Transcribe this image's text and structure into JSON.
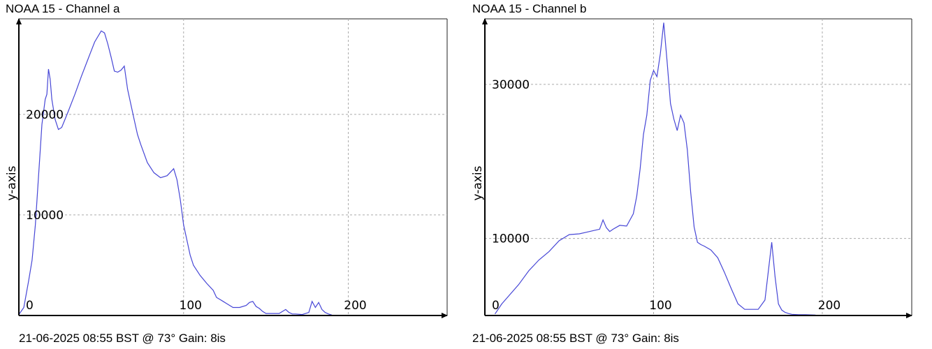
{
  "charts": [
    {
      "title": "NOAA 15 - Channel a",
      "footer": "21-06-2025 08:55 BST @ 73° Gain: 8is",
      "ylabel": "y-axis",
      "line_color": "#4646d6",
      "chart_data": {
        "type": "line",
        "xlim": [
          0,
          260
        ],
        "ylim": [
          0,
          29500
        ],
        "xticks": [
          0,
          100,
          200
        ],
        "xtick_labels": [
          "0",
          "100",
          "200"
        ],
        "yticks": [
          10000,
          20000
        ],
        "ytick_labels": [
          "10000",
          "20000"
        ],
        "grid": true,
        "x": [
          0,
          3,
          6,
          8,
          10,
          12,
          14,
          16,
          17,
          18,
          19,
          20,
          22,
          24,
          26,
          28,
          30,
          34,
          38,
          42,
          46,
          50,
          52,
          54,
          56,
          58,
          60,
          62,
          64,
          66,
          68,
          70,
          72,
          74,
          78,
          82,
          86,
          90,
          94,
          96,
          98,
          100,
          102,
          104,
          106,
          108,
          110,
          114,
          118,
          120,
          122,
          124,
          126,
          130,
          134,
          138,
          140,
          142,
          144,
          146,
          148,
          150,
          154,
          158,
          162,
          164,
          166,
          168,
          172,
          176,
          178,
          180,
          182,
          184,
          186,
          188,
          190
        ],
        "y": [
          100,
          800,
          3500,
          5500,
          9000,
          14000,
          19000,
          21500,
          22000,
          24500,
          23500,
          21500,
          19500,
          18500,
          18700,
          19500,
          20300,
          22000,
          23800,
          25500,
          27200,
          28300,
          28100,
          27000,
          25700,
          24300,
          24200,
          24400,
          24800,
          22500,
          21000,
          19500,
          18000,
          17000,
          15200,
          14200,
          13700,
          13900,
          14600,
          13500,
          11500,
          9000,
          7500,
          6000,
          5000,
          4500,
          4000,
          3200,
          2500,
          1800,
          1600,
          1400,
          1200,
          800,
          800,
          1000,
          1300,
          1400,
          900,
          700,
          400,
          200,
          200,
          200,
          600,
          300,
          150,
          150,
          100,
          300,
          1400,
          800,
          1300,
          600,
          300,
          150,
          50
        ]
      }
    },
    {
      "title": "NOAA 15 - Channel b",
      "footer": "21-06-2025 08:55 BST @ 73° Gain: 8is",
      "ylabel": "y-axis",
      "line_color": "#4646d6",
      "chart_data": {
        "type": "line",
        "xlim": [
          0,
          253
        ],
        "ylim": [
          0,
          38500
        ],
        "xticks": [
          0,
          100,
          200
        ],
        "xtick_labels": [
          "0",
          "100",
          "200"
        ],
        "yticks": [
          10000,
          30000
        ],
        "ytick_labels": [
          "10000",
          "30000"
        ],
        "grid": true,
        "x": [
          6,
          10,
          14,
          20,
          26,
          32,
          38,
          44,
          50,
          56,
          60,
          64,
          68,
          70,
          72,
          74,
          76,
          80,
          84,
          88,
          90,
          92,
          94,
          96,
          98,
          100,
          102,
          104,
          106,
          108,
          110,
          112,
          114,
          116,
          118,
          120,
          122,
          124,
          126,
          128,
          130,
          134,
          138,
          142,
          146,
          150,
          154,
          158,
          162,
          166,
          170,
          172,
          174,
          176,
          178,
          180,
          182,
          186,
          190,
          196
        ],
        "y": [
          200,
          1500,
          2500,
          4000,
          5800,
          7200,
          8300,
          9700,
          10500,
          10600,
          10800,
          11000,
          11200,
          12400,
          11400,
          10900,
          11200,
          11700,
          11600,
          13200,
          15500,
          19000,
          23500,
          26000,
          30500,
          31800,
          31000,
          34000,
          38000,
          33000,
          27500,
          25500,
          24000,
          26000,
          25000,
          21500,
          16000,
          11500,
          9500,
          9200,
          9000,
          8500,
          7500,
          5600,
          3500,
          1500,
          800,
          800,
          800,
          2000,
          9500,
          5000,
          1500,
          700,
          400,
          250,
          150,
          100,
          100,
          50
        ]
      }
    }
  ]
}
